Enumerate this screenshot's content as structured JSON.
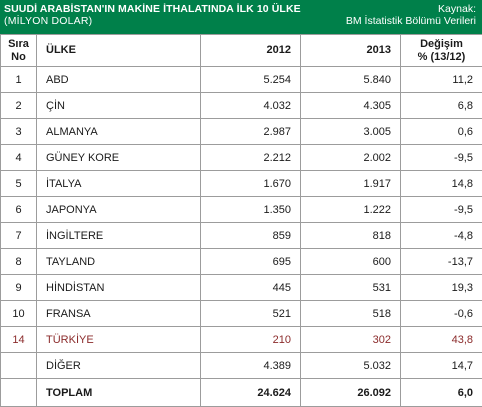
{
  "header": {
    "title": "SUUDİ ARABİSTAN'IN MAKİNE İTHALATINDA İLK 10 ÜLKE",
    "subtitle": "(MİLYON DOLAR)",
    "source_label": "Kaynak:",
    "source_name": "BM İstatistik Bölümü Verileri"
  },
  "colors": {
    "header_bg": "#00804a",
    "header_text": "#ffffff",
    "highlight_text": "#8b2b2b",
    "grid": "#9c9c9c"
  },
  "chart_data": {
    "type": "table",
    "title": "SUUDİ ARABİSTAN'IN MAKİNE İTHALATINDA İLK 10 ÜLKE",
    "subtitle": "(MİLYON DOLAR)",
    "columns": {
      "rank": "Sıra No",
      "country": "ÜLKE",
      "y2012": "2012",
      "y2013": "2013",
      "change": "Değişim % (13/12)"
    },
    "rows": [
      {
        "rank": "1",
        "country": "ABD",
        "y2012": "5.254",
        "y2013": "5.840",
        "change": "11,2"
      },
      {
        "rank": "2",
        "country": "ÇİN",
        "y2012": "4.032",
        "y2013": "4.305",
        "change": "6,8"
      },
      {
        "rank": "3",
        "country": "ALMANYA",
        "y2012": "2.987",
        "y2013": "3.005",
        "change": "0,6"
      },
      {
        "rank": "4",
        "country": "GÜNEY KORE",
        "y2012": "2.212",
        "y2013": "2.002",
        "change": "-9,5"
      },
      {
        "rank": "5",
        "country": "İTALYA",
        "y2012": "1.670",
        "y2013": "1.917",
        "change": "14,8"
      },
      {
        "rank": "6",
        "country": "JAPONYA",
        "y2012": "1.350",
        "y2013": "1.222",
        "change": "-9,5"
      },
      {
        "rank": "7",
        "country": "İNGİLTERE",
        "y2012": "859",
        "y2013": "818",
        "change": "-4,8"
      },
      {
        "rank": "8",
        "country": "TAYLAND",
        "y2012": "695",
        "y2013": "600",
        "change": "-13,7"
      },
      {
        "rank": "9",
        "country": "HİNDİSTAN",
        "y2012": "445",
        "y2013": "531",
        "change": "19,3"
      },
      {
        "rank": "10",
        "country": "FRANSA",
        "y2012": "521",
        "y2013": "518",
        "change": "-0,6"
      },
      {
        "rank": "14",
        "country": "TÜRKİYE",
        "y2012": "210",
        "y2013": "302",
        "change": "43,8",
        "highlight": true
      },
      {
        "rank": "",
        "country": "DİĞER",
        "y2012": "4.389",
        "y2013": "5.032",
        "change": "14,7"
      }
    ],
    "total": {
      "rank": "",
      "country": "TOPLAM",
      "y2012": "24.624",
      "y2013": "26.092",
      "change": "6,0"
    }
  }
}
